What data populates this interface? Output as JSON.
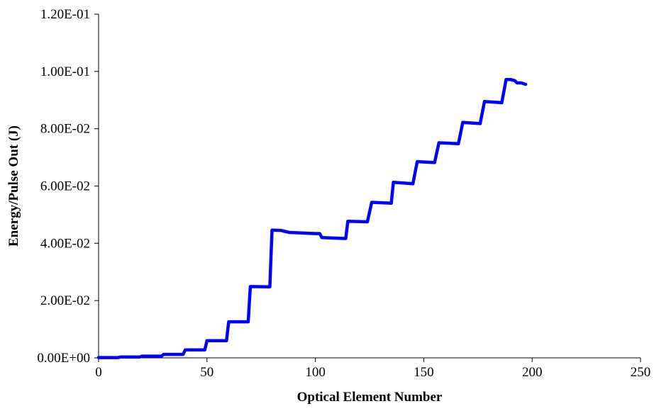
{
  "chart_data": {
    "type": "line",
    "title": "",
    "xlabel": "Optical Element Number",
    "ylabel": "Energy/Pulse Out (J)",
    "xlim": [
      0,
      250
    ],
    "ylim": [
      0,
      0.12
    ],
    "x_ticks": [
      0,
      50,
      100,
      150,
      200,
      250
    ],
    "x_tick_labels": [
      "0",
      "50",
      "100",
      "150",
      "200",
      "250"
    ],
    "y_ticks": [
      0,
      0.02,
      0.04,
      0.06,
      0.08,
      0.1,
      0.12
    ],
    "y_tick_labels": [
      "0.00E+00",
      "2.00E-02",
      "4.00E-02",
      "6.00E-02",
      "8.00E-02",
      "1.00E-01",
      "1.20E-01"
    ],
    "grid": false,
    "legend": "none",
    "series": [
      {
        "color": "#0000ff",
        "x": [
          0,
          9,
          10,
          19,
          20,
          29,
          30,
          39,
          40,
          49,
          50,
          59,
          60,
          69,
          70,
          79,
          80,
          84,
          88,
          100,
          102,
          103,
          113,
          114,
          115,
          124,
          126,
          135,
          136,
          145,
          147,
          155,
          157,
          166,
          168,
          176,
          178,
          186,
          188,
          190,
          192,
          193,
          195,
          197
        ],
        "y": [
          0.0001,
          0.0001,
          0.0003,
          0.0003,
          0.0006,
          0.0006,
          0.0012,
          0.0012,
          0.0028,
          0.0028,
          0.006,
          0.006,
          0.0126,
          0.0126,
          0.0249,
          0.0248,
          0.0446,
          0.0445,
          0.0438,
          0.0434,
          0.0434,
          0.042,
          0.0417,
          0.0417,
          0.0477,
          0.0475,
          0.0543,
          0.054,
          0.0613,
          0.0608,
          0.0685,
          0.0682,
          0.0751,
          0.0748,
          0.0822,
          0.0818,
          0.0895,
          0.0891,
          0.0972,
          0.0972,
          0.0968,
          0.096,
          0.096,
          0.0955
        ]
      }
    ]
  }
}
